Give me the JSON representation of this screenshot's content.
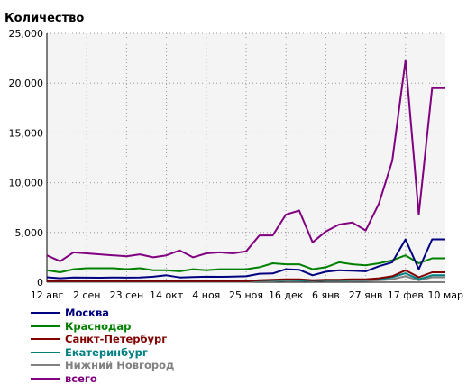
{
  "chart_data": {
    "type": "line",
    "ylabel": "Количество",
    "ylim": [
      0,
      25000
    ],
    "y_ticks": [
      "0",
      "5,000",
      "10,000",
      "15,000",
      "20,000",
      "25,000"
    ],
    "x_tick_labels": [
      "12 авг",
      "2 сен",
      "23 сен",
      "14 окт",
      "4 ноя",
      "25 ноя",
      "16 дек",
      "6 янв",
      "27 янв",
      "17 фев",
      "10 мар"
    ],
    "x_tick_index": [
      0,
      3,
      6,
      9,
      12,
      15,
      18,
      21,
      24,
      27,
      30
    ],
    "grid": true,
    "legend_position": "bottom-left",
    "series": [
      {
        "name": "Москва",
        "color": "#000080",
        "values": [
          500,
          400,
          480,
          460,
          450,
          470,
          460,
          480,
          550,
          700,
          480,
          520,
          550,
          540,
          560,
          600,
          850,
          880,
          1300,
          1250,
          700,
          1050,
          1200,
          1150,
          1100,
          1600,
          2000,
          4300,
          1300,
          4300,
          4300
        ]
      },
      {
        "name": "Краснодар",
        "color": "#008000",
        "values": [
          1200,
          1000,
          1300,
          1400,
          1400,
          1400,
          1300,
          1400,
          1200,
          1200,
          1100,
          1300,
          1200,
          1300,
          1300,
          1300,
          1500,
          1900,
          1800,
          1800,
          1300,
          1500,
          2000,
          1800,
          1700,
          1900,
          2200,
          2700,
          1900,
          2400,
          2400
        ]
      },
      {
        "name": "Санкт-Петербург",
        "color": "#800000",
        "values": [
          100,
          100,
          100,
          100,
          100,
          100,
          100,
          100,
          100,
          100,
          100,
          100,
          100,
          100,
          100,
          100,
          200,
          250,
          300,
          300,
          200,
          250,
          250,
          300,
          300,
          400,
          600,
          1200,
          500,
          1000,
          1000
        ]
      },
      {
        "name": "Екатеринбург",
        "color": "#008080",
        "values": [
          80,
          80,
          80,
          80,
          80,
          80,
          80,
          80,
          80,
          80,
          80,
          80,
          80,
          80,
          80,
          80,
          150,
          200,
          250,
          200,
          150,
          200,
          200,
          250,
          250,
          300,
          500,
          900,
          300,
          700,
          700
        ]
      },
      {
        "name": "Нижний Новгород",
        "color": "#808080",
        "values": [
          50,
          50,
          50,
          50,
          50,
          50,
          50,
          50,
          50,
          50,
          50,
          50,
          50,
          50,
          50,
          50,
          100,
          100,
          150,
          150,
          100,
          150,
          150,
          150,
          150,
          200,
          300,
          600,
          200,
          500,
          500
        ]
      },
      {
        "name": "всего",
        "color": "#800080",
        "values": [
          2700,
          2100,
          3000,
          2900,
          2800,
          2700,
          2600,
          2800,
          2500,
          2700,
          3200,
          2500,
          2900,
          3000,
          2900,
          3100,
          4700,
          4700,
          6800,
          7200,
          4000,
          5100,
          5800,
          6000,
          5200,
          7900,
          12200,
          22300,
          6800,
          19500,
          19500
        ]
      }
    ]
  }
}
